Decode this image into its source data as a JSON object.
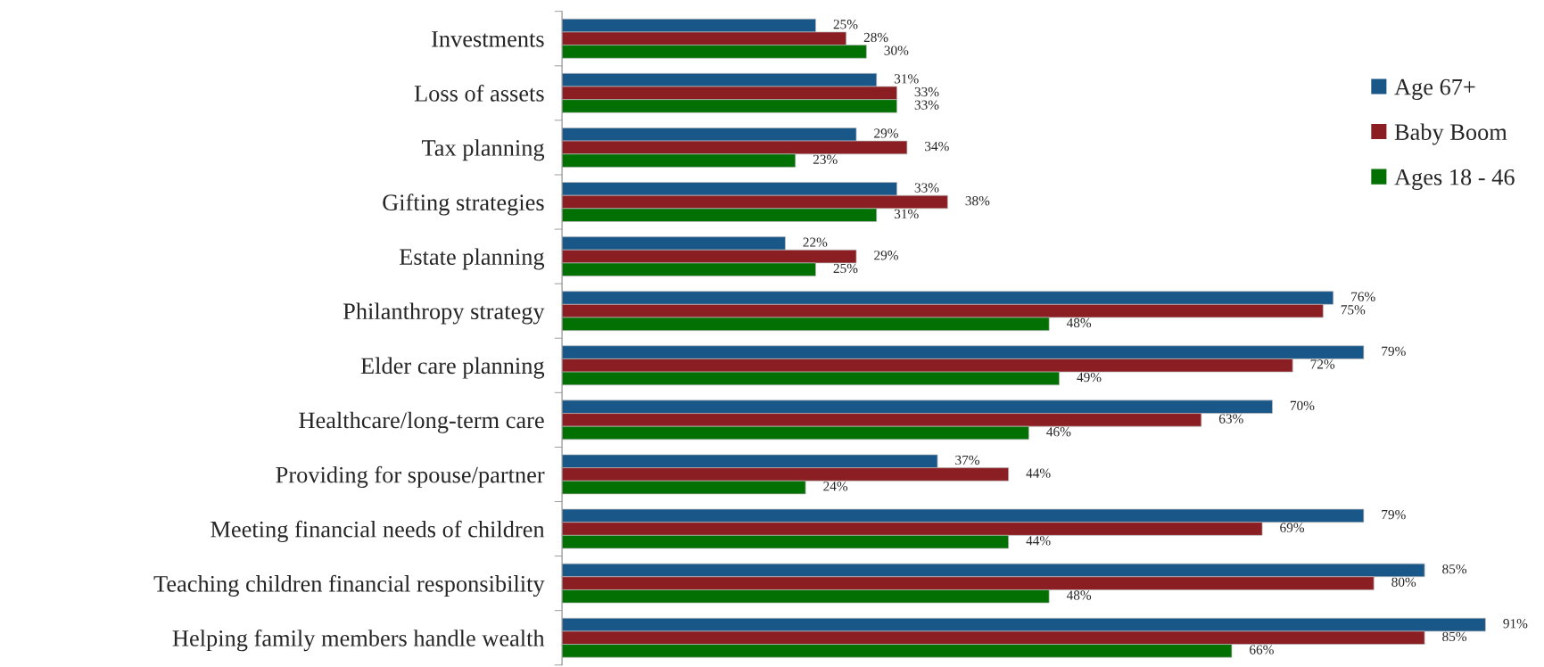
{
  "chart_data": {
    "type": "bar",
    "orientation": "horizontal",
    "legend": "top right",
    "grid": false,
    "categories": [
      "Investments",
      "Loss of assets",
      "Tax planning",
      "Gifting strategies",
      "Estate planning",
      "Philanthropy strategy",
      "Elder care planning",
      "Healthcare/long-term care",
      "Providing for spouse/partner",
      "Meeting financial needs of children",
      "Teaching children financial responsibility",
      "Helping family members handle wealth"
    ],
    "series": [
      {
        "name": "Age 67+",
        "color": "#1a5789",
        "values": [
          25,
          31,
          29,
          33,
          22,
          76,
          79,
          70,
          37,
          79,
          85,
          91
        ],
        "value_labels": [
          "25%",
          "31%",
          "29%",
          "33%",
          "22%",
          "76%",
          "79%",
          "70%",
          "37%",
          "79%",
          "85%",
          "91%"
        ]
      },
      {
        "name": "Baby Boom",
        "color": "#8b1e22",
        "values": [
          28,
          33,
          34,
          38,
          29,
          75,
          72,
          63,
          44,
          69,
          80,
          85
        ],
        "value_labels": [
          "28%",
          "33%",
          "34%",
          "38%",
          "29%",
          "75%",
          "72%",
          "63%",
          "44%",
          "69%",
          "80%",
          "85%"
        ]
      },
      {
        "name": "Ages 18 - 46",
        "color": "#037003",
        "values": [
          30,
          33,
          23,
          31,
          25,
          48,
          49,
          46,
          24,
          44,
          48,
          66
        ],
        "value_labels": [
          "30%",
          "33%",
          "23%",
          "31%",
          "25%",
          "48%",
          "49%",
          "46%",
          "24%",
          "44%",
          "48%",
          "66%"
        ]
      }
    ]
  }
}
